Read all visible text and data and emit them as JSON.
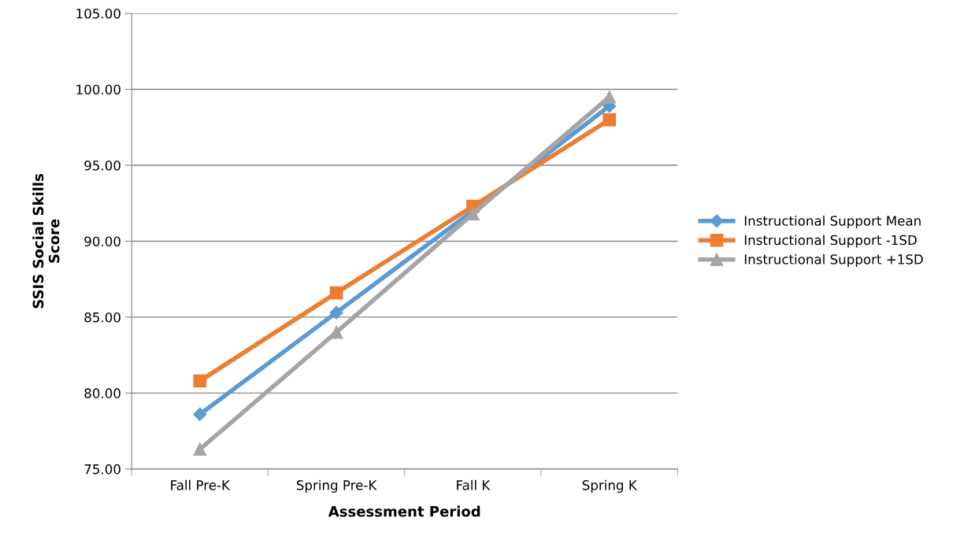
{
  "chart_data": {
    "type": "line",
    "xlabel": "Assessment Period",
    "ylabel": "SSIS Social Skills\nScore",
    "categories": [
      "Fall Pre-K",
      "Spring Pre-K",
      "Fall K",
      "Spring K"
    ],
    "series": [
      {
        "name": "Instructional Support Mean",
        "color": "#5b9bd5",
        "marker": "diamond",
        "values": [
          78.6,
          85.3,
          92.0,
          98.9
        ]
      },
      {
        "name": "Instructional Support -1SD",
        "color": "#ed7d31",
        "marker": "square",
        "values": [
          80.8,
          86.6,
          92.3,
          98.0
        ]
      },
      {
        "name": "Instructional Support +1SD",
        "color": "#a5a5a5",
        "marker": "triangle",
        "values": [
          76.3,
          84.0,
          91.8,
          99.5
        ]
      }
    ],
    "ylim": [
      75,
      105
    ],
    "yticks": [
      {
        "value": 75,
        "label": "75.00"
      },
      {
        "value": 80,
        "label": "80.00"
      },
      {
        "value": 85,
        "label": "85.00"
      },
      {
        "value": 90,
        "label": "90.00"
      },
      {
        "value": 95,
        "label": "95.00"
      },
      {
        "value": 100,
        "label": "100.00"
      },
      {
        "value": 105,
        "label": "105.00"
      }
    ],
    "grid": "y",
    "legend": "right"
  }
}
